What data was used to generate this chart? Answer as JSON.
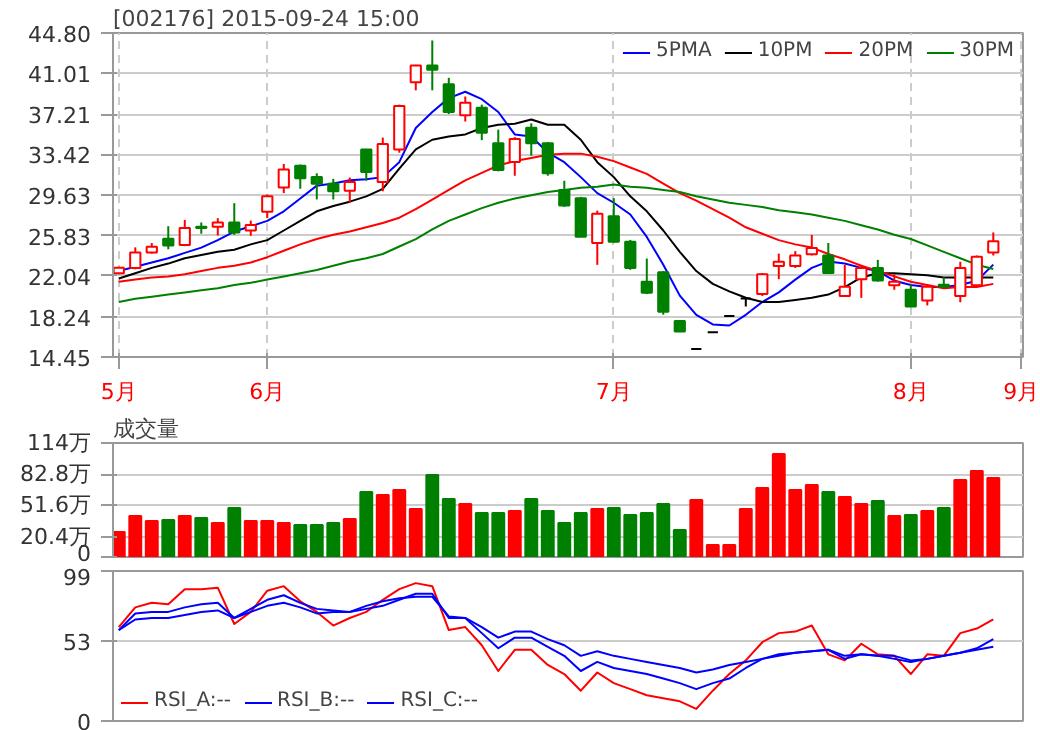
{
  "chart_data": [
    {
      "type": "candlestick",
      "title": "[002176] 2015-09-24 15:00",
      "legend": "top right",
      "grid": true,
      "categories": [
        "5月",
        null,
        null,
        null,
        null,
        null,
        null,
        null,
        null,
        "6月",
        null,
        null,
        null,
        null,
        null,
        null,
        null,
        null,
        null,
        null,
        null,
        null,
        null,
        null,
        null,
        null,
        null,
        null,
        null,
        null,
        "7月",
        null,
        null,
        null,
        null,
        null,
        null,
        null,
        null,
        null,
        null,
        null,
        null,
        null,
        null,
        null,
        null,
        null,
        "8月",
        null,
        null,
        null,
        null,
        null
      ],
      "annotations": [
        "9月"
      ],
      "ylim": [
        14.45,
        44.8
      ],
      "yticks": [
        14.45,
        18.24,
        22.04,
        25.83,
        29.63,
        33.42,
        37.21,
        41.01,
        {
          "value": 44.8,
          "label": "44.80"
        }
      ],
      "ohlc": [
        [
          22.3,
          22.9,
          22.2,
          22.8
        ],
        [
          22.79,
          24.72,
          22.67,
          24.25
        ],
        [
          24.25,
          25.13,
          24.13,
          24.78
        ],
        [
          25.53,
          26.7,
          24.54,
          24.89
        ],
        [
          24.95,
          27.29,
          24.83,
          26.53
        ],
        [
          26.64,
          27.05,
          26.0,
          26.53
        ],
        [
          26.64,
          27.46,
          25.83,
          27.05
        ],
        [
          27.05,
          28.86,
          25.89,
          26.12
        ],
        [
          26.29,
          27.23,
          25.8,
          26.82
        ],
        [
          28.05,
          29.68,
          27.46,
          29.5
        ],
        [
          30.32,
          32.54,
          29.8,
          32.01
        ],
        [
          32.37,
          32.48,
          30.21,
          31.2
        ],
        [
          31.31,
          31.66,
          29.21,
          30.67
        ],
        [
          30.67,
          31.14,
          29.21,
          29.97
        ],
        [
          30.03,
          31.26,
          28.92,
          30.85
        ],
        [
          33.88,
          33.94,
          30.96,
          31.78
        ],
        [
          30.85,
          35.0,
          29.97,
          34.41
        ],
        [
          33.88,
          38.09,
          33.59,
          37.97
        ],
        [
          40.19,
          41.82,
          39.43,
          41.76
        ],
        [
          41.76,
          44.1,
          39.43,
          41.36
        ],
        [
          40.01,
          40.6,
          37.21,
          37.39
        ],
        [
          37.09,
          38.85,
          36.51,
          38.26
        ],
        [
          37.79,
          38.09,
          34.76,
          35.46
        ],
        [
          34.47,
          35.75,
          31.84,
          31.96
        ],
        [
          32.72,
          35.05,
          31.43,
          34.88
        ],
        [
          35.93,
          36.34,
          33.3,
          34.47
        ],
        [
          34.47,
          34.58,
          31.43,
          31.66
        ],
        [
          30.09,
          30.96,
          28.51,
          28.63
        ],
        [
          29.33,
          29.45,
          25.71,
          25.71
        ],
        [
          25.13,
          28.16,
          23.08,
          27.87
        ],
        [
          27.64,
          29.33,
          25.13,
          25.24
        ],
        [
          25.24,
          25.42,
          22.62,
          22.79
        ],
        [
          21.51,
          23.67,
          20.34,
          20.46
        ],
        [
          22.38,
          22.5,
          18.41,
          18.7
        ],
        [
          17.83,
          17.83,
          16.84,
          16.84
        ],
        [
          15.2,
          15.2,
          15.2,
          15.2
        ],
        [
          16.78,
          16.78,
          16.78,
          16.78
        ],
        [
          18.3,
          18.3,
          18.3,
          18.3
        ],
        [
          19.94,
          19.94,
          19.18,
          19.94
        ],
        [
          20.34,
          22.32,
          20.16,
          22.21
        ],
        [
          22.97,
          24.13,
          21.74,
          23.37
        ],
        [
          22.97,
          24.37,
          22.79,
          23.96
        ],
        [
          24.08,
          25.89,
          23.96,
          24.66
        ],
        [
          23.96,
          25.13,
          22.32,
          22.32
        ],
        [
          20.16,
          23.08,
          20.16,
          21.04
        ],
        [
          21.74,
          23.08,
          19.99,
          22.79
        ],
        [
          22.79,
          23.55,
          21.51,
          21.62
        ],
        [
          21.16,
          22.21,
          20.75,
          21.51
        ],
        [
          20.75,
          21.22,
          19.17,
          19.17
        ],
        [
          19.75,
          21.22,
          19.28,
          21.04
        ],
        [
          21.22,
          21.92,
          20.92,
          21.04
        ],
        [
          20.16,
          23.37,
          19.58,
          22.79
        ],
        [
          21.16,
          23.96,
          21.04,
          23.84
        ],
        [
          24.25,
          26.12,
          23.96,
          25.3
        ]
      ],
      "series": [
        {
          "name": "5PMA",
          "type": "line",
          "color": "#0000ff",
          "values": [
            22.5,
            22.9,
            23.3,
            23.7,
            24.2,
            24.7,
            25.4,
            26.2,
            26.7,
            27.2,
            28.1,
            29.3,
            30.5,
            30.7,
            31.0,
            31.1,
            31.3,
            32.7,
            35.9,
            37.4,
            38.7,
            39.3,
            38.6,
            37.4,
            35.3,
            35.1,
            33.6,
            32.7,
            31.3,
            29.8,
            28.9,
            27.8,
            25.7,
            23.1,
            20.2,
            18.4,
            17.5,
            17.4,
            18.4,
            19.6,
            20.5,
            21.7,
            22.8,
            23.4,
            23.2,
            22.8,
            22.5,
            21.6,
            21.2,
            21.0,
            21.0,
            21.2,
            21.6,
            23.1
          ]
        },
        {
          "name": "10PM",
          "type": "line",
          "color": "#000000",
          "values": [
            21.8,
            22.3,
            22.8,
            23.2,
            23.7,
            24.0,
            24.3,
            24.5,
            25.0,
            25.4,
            26.3,
            27.2,
            28.1,
            28.6,
            29.0,
            29.5,
            30.2,
            32.1,
            33.9,
            34.8,
            35.1,
            35.3,
            35.9,
            36.2,
            36.3,
            36.7,
            36.2,
            36.2,
            34.8,
            32.7,
            31.3,
            29.5,
            28.1,
            26.3,
            24.3,
            22.5,
            21.3,
            20.6,
            20.0,
            19.6,
            19.6,
            19.8,
            20.0,
            20.3,
            21.0,
            21.9,
            22.3,
            22.3,
            22.2,
            22.1,
            21.9,
            21.9,
            21.9,
            21.9
          ]
        },
        {
          "name": "20PM",
          "type": "line",
          "color": "#ff0000",
          "values": [
            21.5,
            21.7,
            21.9,
            22.0,
            22.2,
            22.5,
            22.8,
            23.0,
            23.3,
            23.8,
            24.4,
            25.0,
            25.5,
            25.9,
            26.2,
            26.6,
            27.0,
            27.5,
            28.3,
            29.2,
            30.1,
            31.0,
            31.7,
            32.4,
            32.8,
            33.1,
            33.4,
            33.5,
            33.5,
            33.2,
            32.8,
            32.2,
            31.6,
            30.7,
            29.8,
            29.1,
            28.3,
            27.5,
            26.6,
            26.0,
            25.4,
            25.0,
            24.7,
            24.1,
            23.6,
            23.0,
            22.5,
            22.0,
            21.5,
            21.2,
            20.9,
            21.0,
            21.0,
            21.3
          ]
        },
        {
          "name": "30PM",
          "type": "line",
          "color": "#008000",
          "values": [
            19.6,
            19.9,
            20.1,
            20.3,
            20.5,
            20.7,
            20.9,
            21.2,
            21.4,
            21.7,
            22.0,
            22.3,
            22.6,
            23.0,
            23.4,
            23.7,
            24.1,
            24.8,
            25.5,
            26.4,
            27.2,
            27.8,
            28.4,
            28.9,
            29.3,
            29.6,
            29.9,
            30.1,
            30.3,
            30.4,
            30.6,
            30.4,
            30.3,
            30.1,
            29.9,
            29.5,
            29.2,
            28.9,
            28.7,
            28.5,
            28.2,
            28.0,
            27.8,
            27.5,
            27.2,
            26.8,
            26.4,
            25.9,
            25.5,
            24.9,
            24.3,
            23.7,
            23.1,
            22.7
          ]
        }
      ]
    },
    {
      "type": "bar",
      "title": "成交量",
      "grid": "y",
      "tick_labels": "y",
      "categories": [
        null,
        null,
        null,
        null,
        null,
        null,
        null,
        null,
        null,
        null,
        null,
        null,
        null,
        null,
        null,
        null,
        null,
        null,
        null,
        null,
        null,
        null,
        null,
        null,
        null,
        null,
        null,
        null,
        null,
        null,
        null,
        null,
        null,
        null,
        null,
        null,
        null,
        null,
        null,
        null,
        null,
        null,
        null,
        null,
        null,
        null,
        null,
        null,
        null,
        null,
        null,
        null,
        null,
        null
      ],
      "ylim": [
        0,
        114
      ],
      "yticks": [
        0,
        {
          "value": 20.4,
          "label": "20.4万"
        },
        {
          "value": 51.6,
          "label": "51.6万"
        },
        {
          "value": 82.8,
          "label": "82.8万"
        },
        {
          "value": 114,
          "label": "114万"
        }
      ],
      "values": [
        25,
        41,
        36,
        37,
        41,
        39,
        34,
        49,
        36,
        36,
        34,
        32,
        32,
        34,
        38,
        65,
        62,
        67,
        48,
        82,
        58,
        53,
        44,
        44,
        46,
        58,
        46,
        34,
        44,
        48,
        49,
        42,
        44,
        53,
        27,
        57,
        12,
        12,
        48,
        69,
        103,
        67,
        72,
        65,
        60,
        53,
        56,
        41,
        42,
        46,
        49,
        77,
        86,
        79
      ],
      "colors": [
        "#ff0000",
        "#ff0000",
        "#ff0000",
        "#008000",
        "#ff0000",
        "#008000",
        "#ff0000",
        "#008000",
        "#ff0000",
        "#ff0000",
        "#ff0000",
        "#008000",
        "#008000",
        "#008000",
        "#ff0000",
        "#008000",
        "#ff0000",
        "#ff0000",
        "#ff0000",
        "#008000",
        "#008000",
        "#ff0000",
        "#008000",
        "#008000",
        "#ff0000",
        "#008000",
        "#008000",
        "#008000",
        "#008000",
        "#ff0000",
        "#008000",
        "#008000",
        "#008000",
        "#008000",
        "#008000",
        "#ff0000",
        "#ff0000",
        "#ff0000",
        "#ff0000",
        "#ff0000",
        "#ff0000",
        "#ff0000",
        "#ff0000",
        "#008000",
        "#ff0000",
        "#ff0000",
        "#008000",
        "#ff0000",
        "#008000",
        "#ff0000",
        "#008000",
        "#ff0000",
        "#ff0000",
        "#ff0000"
      ]
    },
    {
      "type": "line",
      "legend": "bottom left",
      "grid": "y",
      "tick_labels": "y",
      "categories": [
        null,
        null,
        null,
        null,
        null,
        null,
        null,
        null,
        null,
        null,
        null,
        null,
        null,
        null,
        null,
        null,
        null,
        null,
        null,
        null,
        null,
        null,
        null,
        null,
        null,
        null,
        null,
        null,
        null,
        null,
        null,
        null,
        null,
        null,
        null,
        null,
        null,
        null,
        null,
        null,
        null,
        null,
        null,
        null,
        null,
        null,
        null,
        null,
        null,
        null,
        null,
        null,
        null,
        null
      ],
      "ylim": [
        0,
        99
      ],
      "yticks": [
        0,
        53,
        99
      ],
      "series": [
        {
          "name": "RSI_A:--",
          "color": "#ff0000",
          "values": [
            62,
            75,
            78,
            77,
            87,
            87,
            88,
            64,
            72,
            86,
            89,
            79,
            72,
            63,
            68,
            72,
            80,
            87,
            91,
            89,
            60,
            62,
            50,
            33,
            47,
            47,
            37,
            31,
            20,
            32,
            25,
            21,
            17,
            15,
            13,
            8,
            20,
            31,
            40,
            52,
            58,
            59,
            63,
            44,
            40,
            51,
            44,
            43,
            31,
            44,
            43,
            58,
            61,
            67
          ]
        },
        {
          "name": "RSI_B:--",
          "color": "#0000ff",
          "values": [
            60,
            71,
            72,
            72,
            75,
            77,
            78,
            68,
            74,
            80,
            83,
            78,
            74,
            73,
            72,
            74,
            76,
            80,
            84,
            84,
            68,
            68,
            58,
            48,
            55,
            55,
            49,
            43,
            33,
            39,
            35,
            33,
            31,
            28,
            25,
            21,
            25,
            28,
            35,
            41,
            44,
            45,
            46,
            47,
            41,
            44,
            43,
            41,
            39,
            41,
            43,
            45,
            48,
            54
          ]
        },
        {
          "name": "RSI_C:--",
          "color": "#0000ff",
          "values": [
            60,
            67,
            68,
            68,
            70,
            72,
            73,
            68,
            72,
            76,
            78,
            75,
            71,
            72,
            72,
            76,
            79,
            81,
            82,
            82,
            69,
            68,
            62,
            55,
            59,
            59,
            54,
            50,
            43,
            46,
            43,
            41,
            39,
            37,
            35,
            32,
            34,
            37,
            39,
            41,
            43,
            45,
            46,
            47,
            43,
            44,
            43,
            43,
            40,
            41,
            43,
            45,
            47,
            49
          ]
        }
      ]
    }
  ]
}
